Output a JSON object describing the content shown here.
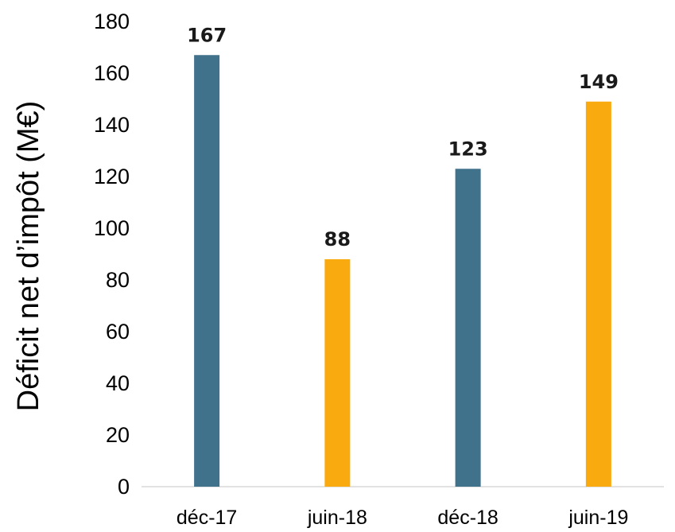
{
  "chart_data": {
    "type": "bar",
    "title": "",
    "xlabel": "",
    "ylabel": "Déficit net d’impôt (M€)",
    "categories": [
      "déc-17",
      "juin-18",
      "déc-18",
      "juin-19"
    ],
    "values": [
      167,
      88,
      123,
      149
    ],
    "data_labels": [
      "167",
      "88",
      "123",
      "149"
    ],
    "bar_colors": [
      "#41728c",
      "#f9aa0f",
      "#41728c",
      "#f9aa0f"
    ],
    "ylim": [
      0,
      180
    ],
    "yticks": [
      0,
      20,
      40,
      60,
      80,
      100,
      120,
      140,
      160,
      180
    ],
    "grid": false,
    "legend": "none"
  }
}
